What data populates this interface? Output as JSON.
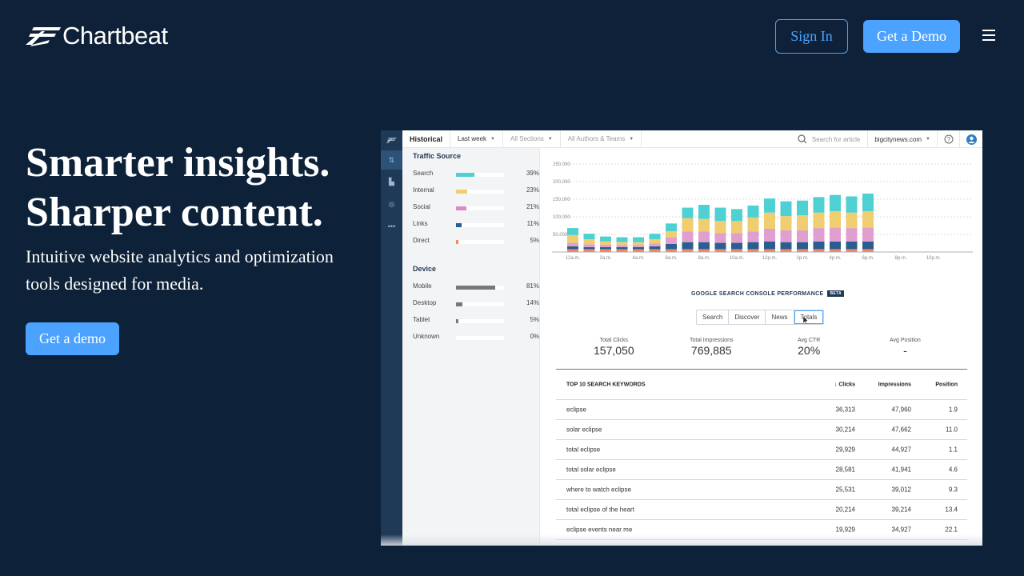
{
  "header": {
    "brand": "Chartbeat",
    "sign_in": "Sign In",
    "get_demo": "Get a Demo",
    "menu_icon": "hamburger-icon"
  },
  "hero": {
    "title_line1": "Smarter insights.",
    "title_line2": "Sharper content.",
    "subtitle": "Intuitive website analytics and optimization tools designed for media.",
    "cta": "Get a demo"
  },
  "colors": {
    "background": "#0d2139",
    "accent": "#4ba3ff",
    "search": "#4fd0d3",
    "internal": "#f0cd6e",
    "social": "#e19fd0",
    "links": "#2a5d92",
    "direct": "#f08a63"
  },
  "app": {
    "topbar": {
      "view": "Historical",
      "range": "Last week",
      "sections": "All Sections",
      "authors": "All Authors & Teams",
      "search_placeholder": "Search for article",
      "site": "bigcitynews.com"
    },
    "traffic_source": {
      "title": "Traffic Source",
      "rows": [
        {
          "label": "Search",
          "pct": "39%",
          "value": 0.39,
          "color": "#4fd0d3"
        },
        {
          "label": "Internal",
          "pct": "23%",
          "value": 0.23,
          "color": "#f0cd6e"
        },
        {
          "label": "Social",
          "pct": "21%",
          "value": 0.21,
          "color": "#d98bc4"
        },
        {
          "label": "Links",
          "pct": "11%",
          "value": 0.11,
          "color": "#2a5d92"
        },
        {
          "label": "Direct",
          "pct": "5%",
          "value": 0.05,
          "color": "#f08a63"
        }
      ]
    },
    "device": {
      "title": "Device",
      "rows": [
        {
          "label": "Mobile",
          "pct": "81%",
          "value": 0.81,
          "color": "#777"
        },
        {
          "label": "Desktop",
          "pct": "14%",
          "value": 0.14,
          "color": "#777"
        },
        {
          "label": "Tablet",
          "pct": "5%",
          "value": 0.05,
          "color": "#777"
        },
        {
          "label": "Unknown",
          "pct": "0%",
          "value": 0.0,
          "color": "#777"
        }
      ]
    },
    "gsc": {
      "title": "GOOGLE SEARCH CONSOLE PERFORMANCE",
      "beta": "BETA",
      "tabs": [
        "Search",
        "Discover",
        "News",
        "Totals"
      ],
      "active_tab": "Totals",
      "stats": [
        {
          "label": "Total Clicks",
          "value": "157,050"
        },
        {
          "label": "Total Impressions",
          "value": "769,885"
        },
        {
          "label": "Avg CTR",
          "value": "20%"
        },
        {
          "label": "Avg Position",
          "value": "-"
        }
      ]
    },
    "keywords": {
      "headers": [
        "TOP 10 SEARCH KEYWORDS",
        "↓ Clicks",
        "Impressions",
        "Position"
      ],
      "rows": [
        [
          "eclipse",
          "36,313",
          "47,960",
          "1.9"
        ],
        [
          "solar eclipse",
          "30,214",
          "47,662",
          "11.0"
        ],
        [
          "total eclipse",
          "29,929",
          "44,927",
          "1.1"
        ],
        [
          "total solar eclipse",
          "28,581",
          "41,941",
          "4.6"
        ],
        [
          "where to watch eclipse",
          "25,531",
          "39,012",
          "9.3"
        ],
        [
          "total eclipse of the heart",
          "20,214",
          "39,214",
          "13.4"
        ],
        [
          "eclipse events near me",
          "19,929",
          "34,927",
          "22.1"
        ]
      ]
    }
  },
  "chart_data": {
    "type": "bar",
    "stacked": true,
    "x_tick_labels": [
      "12a.m.",
      "2a.m.",
      "4a.m.",
      "6a.m.",
      "8a.m.",
      "10a.m.",
      "12p.m.",
      "2p.m.",
      "4p.m.",
      "6p.m.",
      "8p.m.",
      "10p.m."
    ],
    "y_tick_labels": [
      "250,000",
      "200,000",
      "150,000",
      "100,000",
      "50,000"
    ],
    "ylim": [
      0,
      250000
    ],
    "series": [
      {
        "color": "#f08a63",
        "values": [
          8000,
          8000,
          8000,
          8000,
          8000,
          8000,
          8000,
          8000,
          8000,
          8000,
          8000,
          8000,
          8000,
          8000,
          8000,
          8000,
          8000,
          8000,
          8000
        ]
      },
      {
        "color": "#2a5d92",
        "values": [
          8000,
          6000,
          6000,
          6000,
          6000,
          8000,
          15000,
          20000,
          20000,
          18000,
          18000,
          20000,
          22000,
          20000,
          20000,
          22000,
          22000,
          22000,
          22000
        ]
      },
      {
        "color": "#e19fd0",
        "values": [
          10000,
          8000,
          7000,
          6000,
          6000,
          8000,
          18000,
          30000,
          30000,
          28000,
          28000,
          30000,
          36000,
          34000,
          34000,
          38000,
          40000,
          38000,
          40000
        ]
      },
      {
        "color": "#f0cd6e",
        "values": [
          22000,
          14000,
          9000,
          8000,
          8000,
          12000,
          18000,
          38000,
          36000,
          34000,
          34000,
          40000,
          46000,
          40000,
          42000,
          44000,
          46000,
          44000,
          46000
        ]
      },
      {
        "color": "#4fd0d3",
        "values": [
          20000,
          16000,
          14000,
          14000,
          14000,
          16000,
          22000,
          30000,
          40000,
          38000,
          34000,
          34000,
          40000,
          42000,
          42000,
          44000,
          46000,
          46000,
          50000
        ]
      }
    ]
  }
}
